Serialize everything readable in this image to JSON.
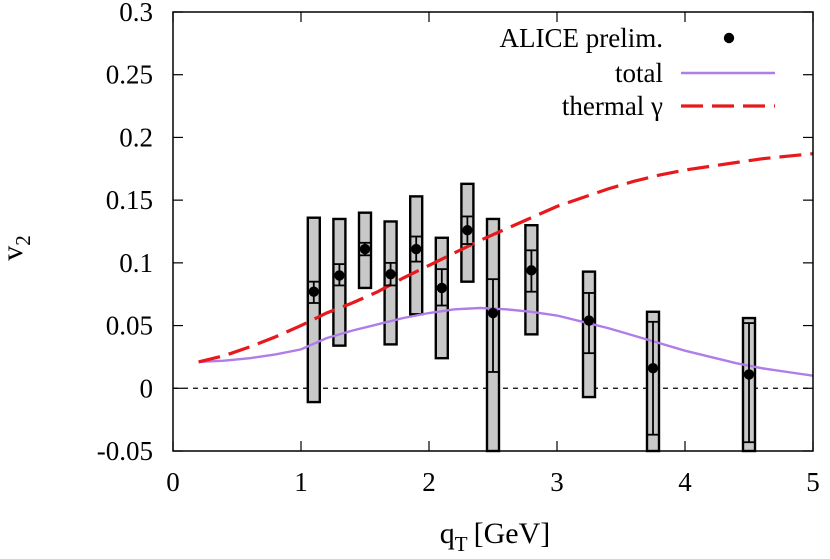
{
  "chart_data": {
    "type": "scatter",
    "xlabel": {
      "main": "q",
      "sub": "T",
      "unit": "[GeV]"
    },
    "ylabel": {
      "main": "v",
      "sub": "2"
    },
    "xlim": [
      0,
      5
    ],
    "ylim": [
      -0.05,
      0.3
    ],
    "xticks": [
      "0",
      "1",
      "2",
      "3",
      "4",
      "5"
    ],
    "yticks": [
      "-0.05",
      "0",
      "0.05",
      "0.1",
      "0.15",
      "0.2",
      "0.25",
      "0.3"
    ],
    "grid": false,
    "zero_line": {
      "y": 0,
      "style": "dashed"
    },
    "legend": {
      "placement": "top-right",
      "entries": [
        {
          "label": "ALICE prelim.",
          "marker": "dot",
          "color": "#000000"
        },
        {
          "label": "total",
          "marker": "solid-line",
          "color": "#b07de8"
        },
        {
          "label": "thermal γ",
          "marker": "dashed-line",
          "color": "#e8191c"
        }
      ]
    },
    "series": [
      {
        "name": "ALICE prelim.",
        "kind": "points",
        "color": "#000000",
        "points": [
          {
            "x": 1.1,
            "y": 0.077,
            "stat": [
              0.068,
              0.085
            ],
            "sys": [
              -0.011,
              0.136
            ]
          },
          {
            "x": 1.3,
            "y": 0.09,
            "stat": [
              0.082,
              0.099
            ],
            "sys": [
              0.034,
              0.135
            ]
          },
          {
            "x": 1.5,
            "y": 0.111,
            "stat": [
              0.106,
              0.116
            ],
            "sys": [
              0.08,
              0.14
            ]
          },
          {
            "x": 1.7,
            "y": 0.091,
            "stat": [
              0.082,
              0.1
            ],
            "sys": [
              0.035,
              0.133
            ]
          },
          {
            "x": 1.9,
            "y": 0.111,
            "stat": [
              0.101,
              0.121
            ],
            "sys": [
              0.059,
              0.153
            ]
          },
          {
            "x": 2.1,
            "y": 0.08,
            "stat": [
              0.066,
              0.095
            ],
            "sys": [
              0.024,
              0.12
            ]
          },
          {
            "x": 2.3,
            "y": 0.126,
            "stat": [
              0.115,
              0.137
            ],
            "sys": [
              0.085,
              0.163
            ]
          },
          {
            "x": 2.5,
            "y": 0.06,
            "stat": [
              0.013,
              0.087
            ],
            "sys": [
              -0.053,
              0.135
            ]
          },
          {
            "x": 2.8,
            "y": 0.094,
            "stat": [
              0.077,
              0.11
            ],
            "sys": [
              0.043,
              0.13
            ]
          },
          {
            "x": 3.25,
            "y": 0.054,
            "stat": [
              0.028,
              0.076
            ],
            "sys": [
              -0.007,
              0.093
            ]
          },
          {
            "x": 3.75,
            "y": 0.016,
            "stat": [
              -0.037,
              0.053
            ],
            "sys": [
              -0.05,
              0.061
            ]
          },
          {
            "x": 4.5,
            "y": 0.011,
            "stat": [
              -0.043,
              0.052
            ],
            "sys": [
              -0.05,
              0.056
            ]
          }
        ]
      },
      {
        "name": "total",
        "kind": "line",
        "color": "#b07de8",
        "x": [
          0.2,
          0.4,
          0.6,
          0.8,
          1.0,
          1.2,
          1.4,
          1.6,
          1.8,
          2.0,
          2.2,
          2.4,
          2.6,
          2.8,
          3.0,
          3.2,
          3.4,
          3.6,
          3.8,
          4.0,
          4.2,
          4.4,
          4.6,
          4.8,
          5.0
        ],
        "y": [
          0.021,
          0.022,
          0.024,
          0.027,
          0.031,
          0.04,
          0.046,
          0.051,
          0.056,
          0.06,
          0.063,
          0.064,
          0.063,
          0.061,
          0.058,
          0.053,
          0.048,
          0.042,
          0.036,
          0.03,
          0.025,
          0.02,
          0.016,
          0.013,
          0.01
        ]
      },
      {
        "name": "thermal γ",
        "kind": "line",
        "style": "dashed",
        "color": "#e8191c",
        "x": [
          0.2,
          0.4,
          0.6,
          0.8,
          1.0,
          1.2,
          1.4,
          1.6,
          1.8,
          2.0,
          2.2,
          2.4,
          2.6,
          2.8,
          3.0,
          3.2,
          3.4,
          3.6,
          3.8,
          4.0,
          4.2,
          4.4,
          4.6,
          4.8,
          5.0
        ],
        "y": [
          0.021,
          0.026,
          0.033,
          0.041,
          0.05,
          0.06,
          0.068,
          0.077,
          0.088,
          0.098,
          0.108,
          0.118,
          0.127,
          0.136,
          0.145,
          0.152,
          0.159,
          0.165,
          0.17,
          0.174,
          0.177,
          0.18,
          0.183,
          0.185,
          0.187
        ]
      }
    ]
  }
}
